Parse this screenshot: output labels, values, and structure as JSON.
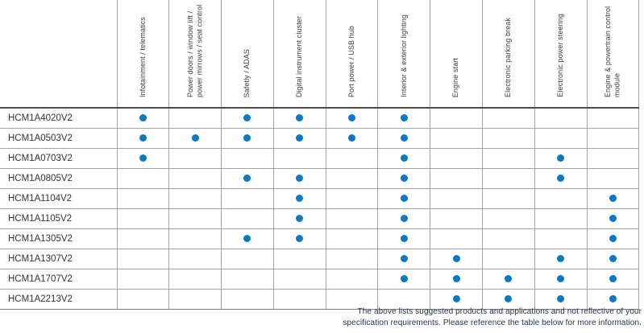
{
  "matrix": {
    "columns": [
      "Infotainment / telematics",
      "Power doors / window lift / power mirrows / seat control",
      "Safetly / ADAS",
      "Digital instrument cluster",
      "Port power / USB hub",
      "Interior & exterior lighting",
      "Engine start",
      "Electronic parking break",
      "Electronic power steering",
      "Engine & powertrain control module"
    ],
    "rows": [
      {
        "part": "HCM1A4020V2",
        "applications": [
          1,
          0,
          1,
          1,
          1,
          1,
          0,
          0,
          0,
          0
        ]
      },
      {
        "part": "HCM1A0503V2",
        "applications": [
          1,
          1,
          1,
          1,
          1,
          1,
          0,
          0,
          0,
          0
        ]
      },
      {
        "part": "HCM1A0703V2",
        "applications": [
          1,
          0,
          0,
          0,
          0,
          1,
          0,
          0,
          1,
          0
        ]
      },
      {
        "part": "HCM1A0805V2",
        "applications": [
          0,
          0,
          1,
          1,
          0,
          1,
          0,
          0,
          1,
          0
        ]
      },
      {
        "part": "HCM1A1104V2",
        "applications": [
          0,
          0,
          0,
          1,
          0,
          1,
          0,
          0,
          0,
          1
        ]
      },
      {
        "part": "HCM1A1105V2",
        "applications": [
          0,
          0,
          0,
          1,
          0,
          1,
          0,
          0,
          0,
          1
        ]
      },
      {
        "part": "HCM1A1305V2",
        "applications": [
          0,
          0,
          1,
          1,
          0,
          1,
          0,
          0,
          0,
          1
        ]
      },
      {
        "part": "HCM1A1307V2",
        "applications": [
          0,
          0,
          0,
          0,
          0,
          1,
          1,
          0,
          1,
          1
        ]
      },
      {
        "part": "HCM1A1707V2",
        "applications": [
          0,
          0,
          0,
          0,
          0,
          1,
          1,
          1,
          1,
          1
        ]
      },
      {
        "part": "HCM1A2213V2",
        "applications": [
          0,
          0,
          0,
          0,
          0,
          0,
          1,
          1,
          1,
          1
        ]
      }
    ]
  },
  "footnote": {
    "line1": "The above lists suggested products and applications and not reflective of your",
    "line2": "specification requirements. Please reference the table below for more information."
  },
  "colors": {
    "dot": "#0b78c2",
    "grid_line": "#a3a3a3",
    "header_separator": "#4a4a4a",
    "label_text": "#333333",
    "header_text": "#3c3c3c",
    "footnote_text": "#233246"
  }
}
